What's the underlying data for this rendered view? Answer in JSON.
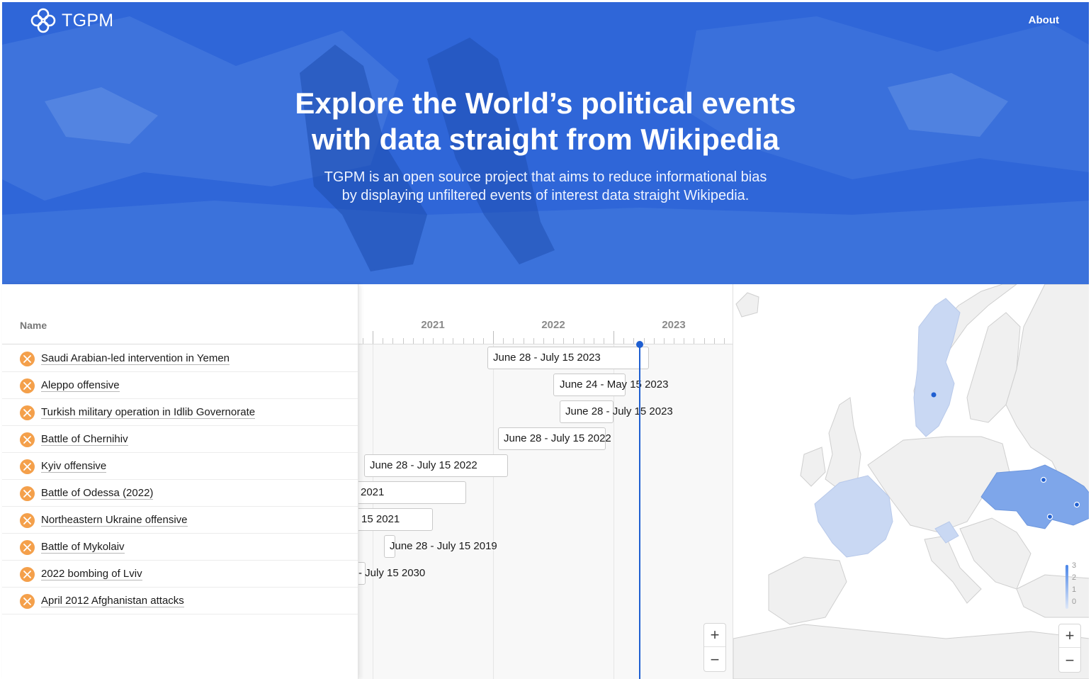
{
  "brand": {
    "name": "TGPM"
  },
  "nav": {
    "about": "About"
  },
  "hero": {
    "title_line1": "Explore the World’s political events",
    "title_line2": "with data straight from Wikipedia",
    "subtitle_line1": "TGPM is an open source project that aims to reduce informational bias",
    "subtitle_line2": "by displaying unfiltered events of interest data straight Wikipedia."
  },
  "list": {
    "header": "Name",
    "items": [
      {
        "label": "Saudi Arabian-led intervention in Yemen"
      },
      {
        "label": "Aleppo offensive"
      },
      {
        "label": "Turkish military operation in Idlib Governorate"
      },
      {
        "label": "Battle of Chernihiv"
      },
      {
        "label": "Kyiv offensive"
      },
      {
        "label": "Battle of Odessa (2022)"
      },
      {
        "label": "Northeastern Ukraine offensive"
      },
      {
        "label": "Battle of Mykolaiv"
      },
      {
        "label": "2022 bombing of Lviv"
      },
      {
        "label": "April 2012 Afghanistan attacks"
      }
    ]
  },
  "timeline": {
    "years": [
      "2021",
      "2022",
      "2023"
    ],
    "bars": [
      {
        "label": "June 28 - July 15 2023"
      },
      {
        "label": "June 24 - May 15 2023"
      },
      {
        "label": "June 28 - July 15 2023"
      },
      {
        "label": "June 28 - July 15 2022"
      },
      {
        "label": "June 28 - July 15 2022"
      },
      {
        "label": "2021"
      },
      {
        "label": "15 2021"
      },
      {
        "label": "June 28 - July 15 2019"
      },
      {
        "label": "- July 15 2030"
      }
    ],
    "zoom_in": "+",
    "zoom_out": "−"
  },
  "map": {
    "legend": [
      "3",
      "2",
      "1",
      "0"
    ],
    "zoom_in": "+",
    "zoom_out": "−",
    "colors": {
      "level1": "#c9d8f3",
      "level2": "#7ea6ea",
      "land": "#f0f0f0",
      "border": "#cfcfcf",
      "marker": "#1f5fd1"
    }
  },
  "colors": {
    "hero": "#2f66d8",
    "accent": "#1f5fd1",
    "icon": "#f4a04b"
  }
}
